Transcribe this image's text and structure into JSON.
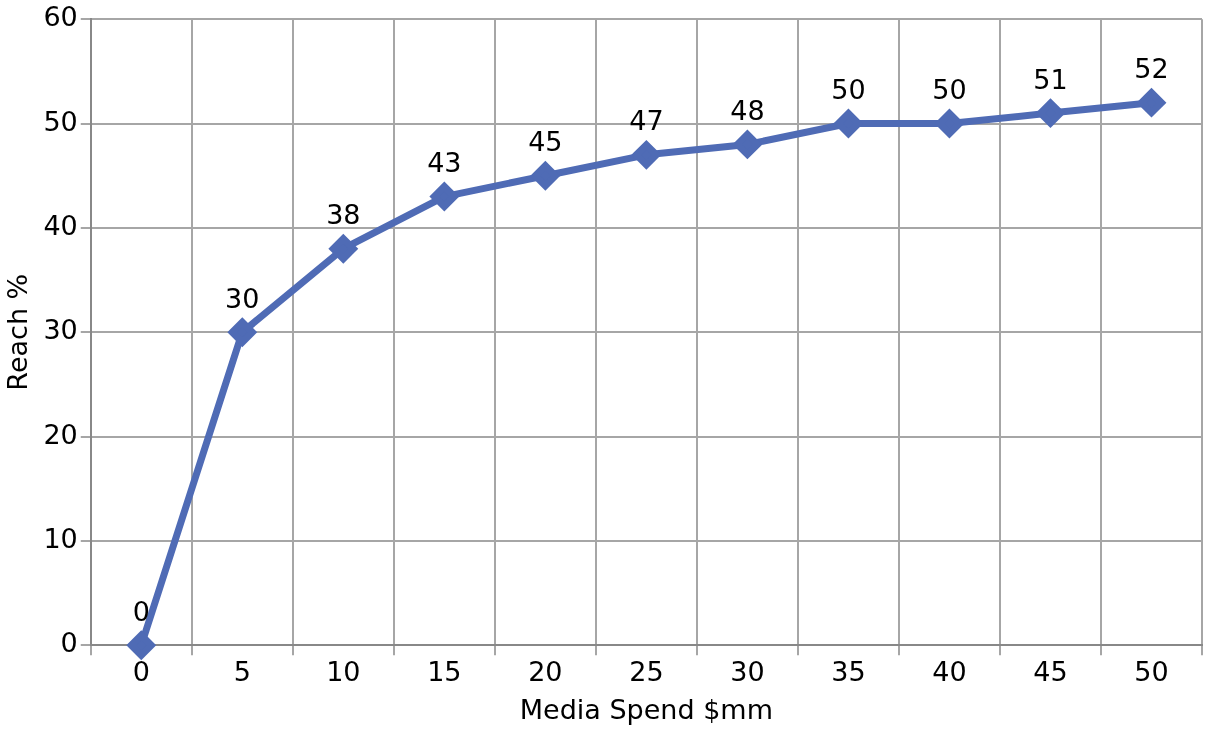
{
  "chart_data": {
    "type": "line",
    "xlabel": "Media Spend $mm",
    "ylabel": "Reach %",
    "categories": [
      "0",
      "5",
      "10",
      "15",
      "20",
      "25",
      "30",
      "35",
      "40",
      "45",
      "50"
    ],
    "values": [
      0,
      30,
      38,
      43,
      45,
      47,
      48,
      50,
      50,
      51,
      52
    ],
    "color": "#4f6bb5",
    "ylim": [
      0,
      60
    ],
    "yticks": [
      0,
      10,
      20,
      30,
      40,
      50,
      60
    ],
    "grid": true,
    "legend": false,
    "marker": "diamond",
    "line_style": "solid",
    "data_labels": true
  }
}
